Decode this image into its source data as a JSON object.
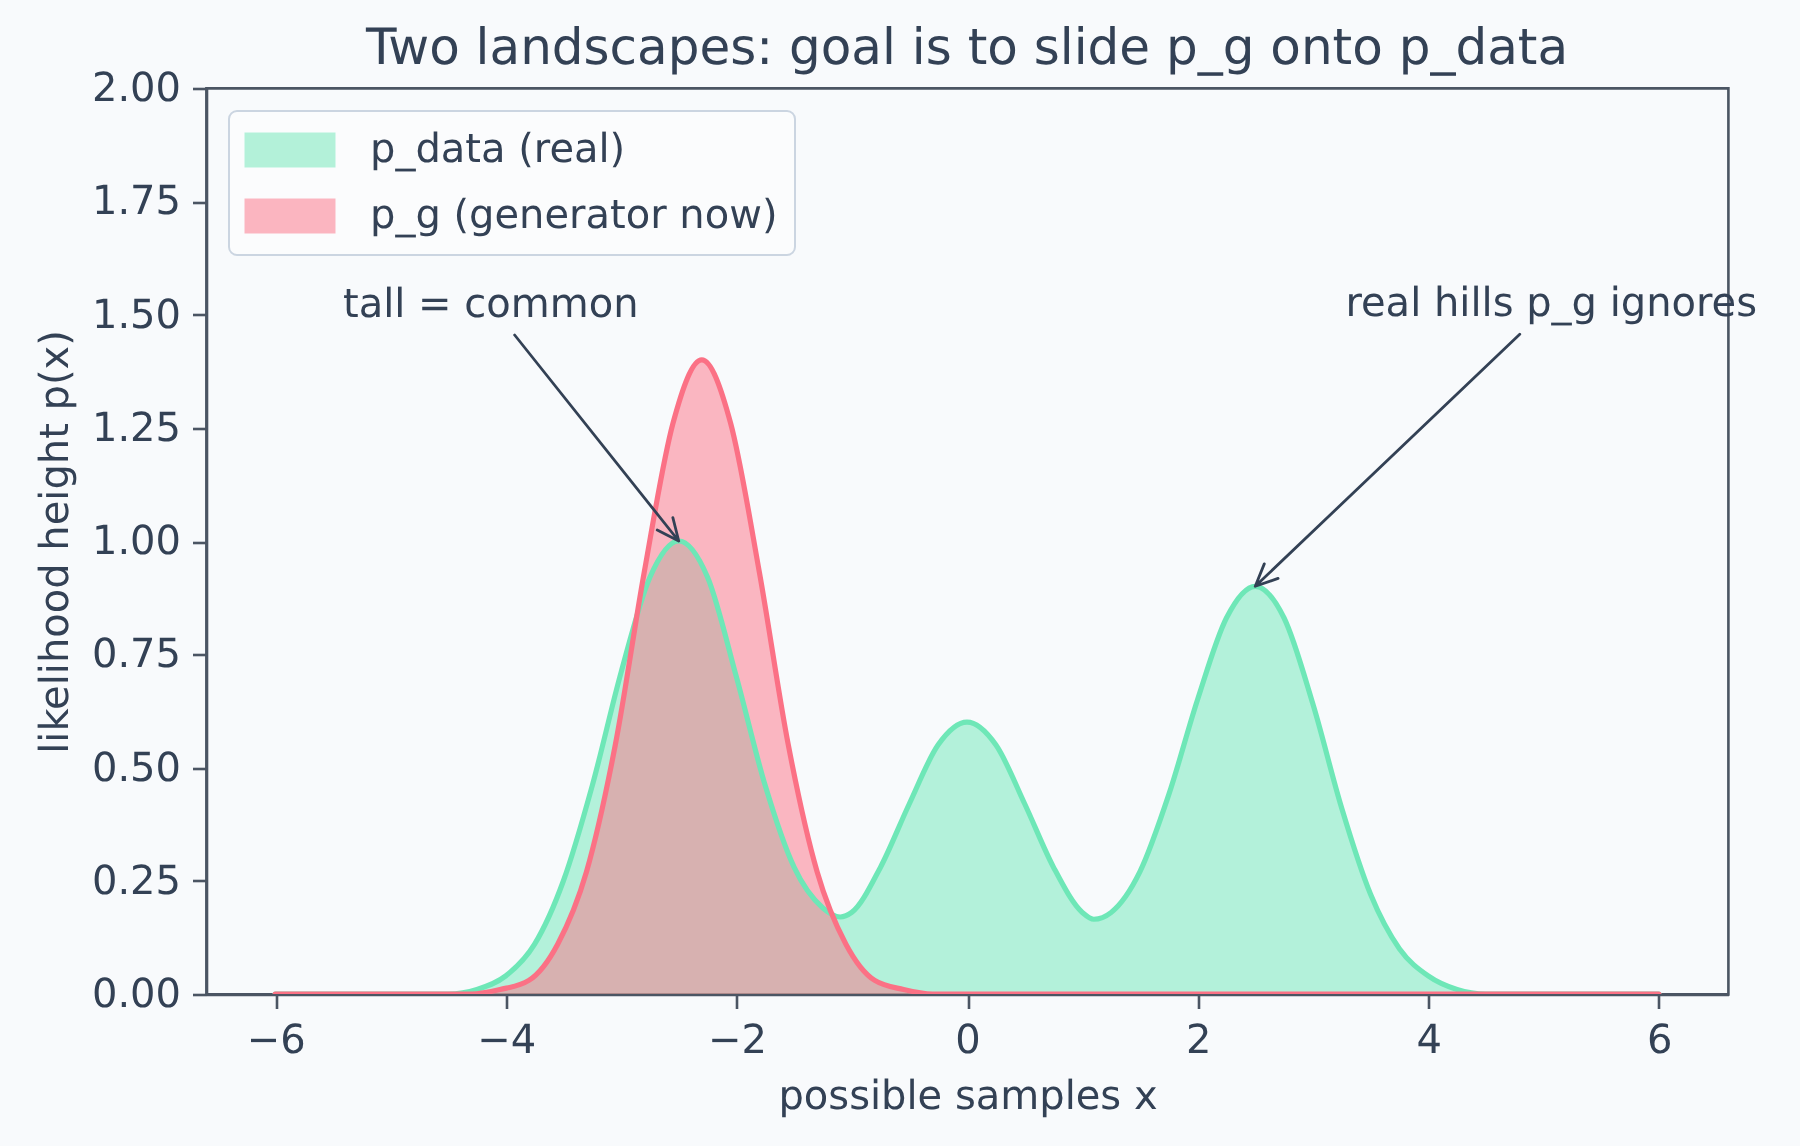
{
  "chart_data": {
    "type": "area",
    "title": "Two landscapes: goal is to slide p_g onto p_data",
    "xlabel": "possible samples  x",
    "ylabel": "likelihood height  p(x)",
    "xlim": [
      -6.6,
      6.6
    ],
    "xticks": [
      {
        "value": -6,
        "label": "−6"
      },
      {
        "value": -4,
        "label": "−4"
      },
      {
        "value": -2,
        "label": "−2"
      },
      0,
      2,
      4,
      6
    ],
    "ylim": [
      0,
      2
    ],
    "yticks": [
      {
        "value": 0,
        "label": "0.00"
      },
      0.25,
      {
        "value": 0.5,
        "label": "0.50"
      },
      0.75,
      {
        "value": 1,
        "label": "1.00"
      },
      1.25,
      {
        "value": 1.5,
        "label": "1.50"
      },
      1.75,
      {
        "value": 2,
        "label": "2.00"
      }
    ],
    "grid": false,
    "legend": "top left",
    "series": [
      {
        "name": "p_data (real)",
        "color": "#6ee7b7",
        "x": [
          -6,
          -5.75,
          -5.5,
          -5.25,
          -5,
          -4.75,
          -4.5,
          -4.25,
          -4,
          -3.75,
          -3.5,
          -3.25,
          -3,
          -2.75,
          -2.5,
          -2.25,
          -2,
          -1.75,
          -1.5,
          -1.25,
          -1.1,
          -1,
          -0.75,
          -0.5,
          -0.25,
          0,
          0.25,
          0.5,
          0.75,
          1,
          1.1,
          1.25,
          1.5,
          1.75,
          2,
          2.25,
          2.5,
          2.75,
          3,
          3.25,
          3.5,
          3.75,
          4,
          4.25,
          4.5,
          4.75,
          5,
          5.25,
          5.5,
          5.75,
          6
        ],
        "values": [
          0,
          0,
          0,
          0,
          0,
          0,
          0,
          0.01,
          0.04,
          0.11,
          0.25,
          0.46,
          0.71,
          0.92,
          1.0,
          0.92,
          0.7,
          0.46,
          0.28,
          0.19,
          0.17,
          0.18,
          0.28,
          0.42,
          0.55,
          0.6,
          0.55,
          0.42,
          0.28,
          0.18,
          0.165,
          0.18,
          0.27,
          0.44,
          0.65,
          0.83,
          0.9,
          0.83,
          0.64,
          0.41,
          0.22,
          0.1,
          0.04,
          0.01,
          0,
          0,
          0,
          0,
          0,
          0,
          0
        ]
      },
      {
        "name": "p_g (generator now)",
        "color": "#fb7185",
        "x": [
          -6,
          -5.5,
          -5.05,
          -4.8,
          -4.55,
          -4.3,
          -4.05,
          -3.8,
          -3.55,
          -3.3,
          -3.05,
          -2.8,
          -2.55,
          -2.3,
          -2.05,
          -1.8,
          -1.55,
          -1.3,
          -1.05,
          -0.8,
          -0.55,
          -0.3,
          -0.05,
          0.5,
          1,
          2,
          3,
          4,
          5,
          6
        ],
        "values": [
          0,
          0,
          0,
          0,
          0,
          0,
          0.01,
          0.03,
          0.11,
          0.27,
          0.55,
          0.93,
          1.26,
          1.4,
          1.26,
          0.93,
          0.55,
          0.27,
          0.11,
          0.03,
          0.01,
          0,
          0,
          0,
          0,
          0,
          0,
          0,
          0,
          0
        ]
      }
    ],
    "annotations": [
      {
        "text": "tall = common",
        "x": -2.5,
        "y": 1.0
      },
      {
        "text": "real hills p_g ignores",
        "x": 2.5,
        "y": 0.9
      }
    ]
  }
}
